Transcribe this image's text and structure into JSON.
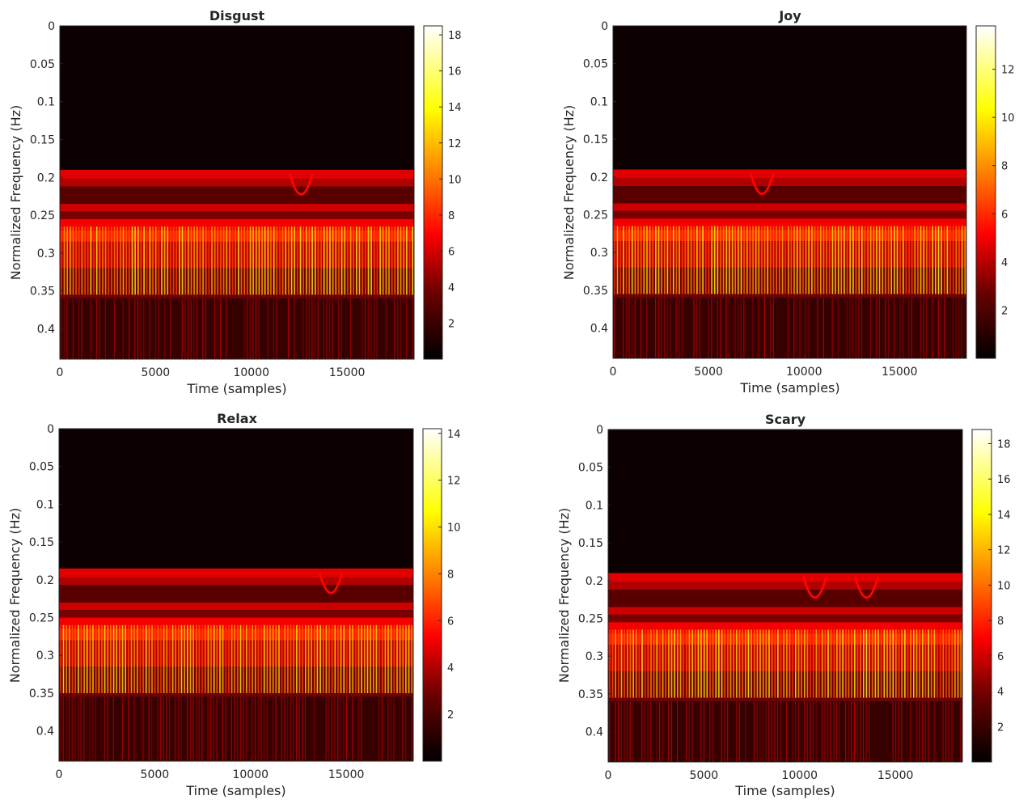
{
  "chart_data": [
    {
      "type": "heatmap",
      "title": "Disgust",
      "xlabel": "Time (samples)",
      "ylabel": "Normalized Frequency (Hz)",
      "xlim": [
        0,
        18500
      ],
      "ylim": [
        0,
        0.44
      ],
      "y_reversed": true,
      "xticks": [
        0,
        5000,
        10000,
        15000
      ],
      "yticks": [
        0,
        0.05,
        0.1,
        0.15,
        0.2,
        0.25,
        0.3,
        0.35,
        0.4
      ],
      "colorbar": {
        "min": 0,
        "max": 18.5,
        "ticks": [
          2,
          4,
          6,
          8,
          10,
          12,
          14,
          16,
          18
        ]
      },
      "colormap": "hot",
      "band_low": 0.19,
      "dips": [
        12600
      ]
    },
    {
      "type": "heatmap",
      "title": "Joy",
      "xlabel": "Time (samples)",
      "ylabel": "Normalized Frequency (Hz)",
      "xlim": [
        0,
        18500
      ],
      "ylim": [
        0,
        0.44
      ],
      "y_reversed": true,
      "xticks": [
        0,
        5000,
        10000,
        15000
      ],
      "yticks": [
        0,
        0.05,
        0.1,
        0.15,
        0.2,
        0.25,
        0.3,
        0.35,
        0.4
      ],
      "colorbar": {
        "min": 0,
        "max": 13.8,
        "ticks": [
          2,
          4,
          6,
          8,
          10,
          12
        ]
      },
      "colormap": "hot",
      "band_low": 0.19,
      "dips": [
        7800
      ]
    },
    {
      "type": "heatmap",
      "title": "Relax",
      "xlabel": "Time (samples)",
      "ylabel": "Normalized Frequency (Hz)",
      "xlim": [
        0,
        18500
      ],
      "ylim": [
        0,
        0.44
      ],
      "y_reversed": true,
      "xticks": [
        0,
        5000,
        10000,
        15000
      ],
      "yticks": [
        0,
        0.05,
        0.1,
        0.15,
        0.2,
        0.25,
        0.3,
        0.35,
        0.4
      ],
      "colorbar": {
        "min": 0,
        "max": 14.2,
        "ticks": [
          2,
          4,
          6,
          8,
          10,
          12,
          14
        ]
      },
      "colormap": "hot",
      "band_low": 0.185,
      "dips": [
        14200
      ]
    },
    {
      "type": "heatmap",
      "title": "Scary",
      "xlabel": "Time (samples)",
      "ylabel": "Normalized Frequency (Hz)",
      "xlim": [
        0,
        18500
      ],
      "ylim": [
        0,
        0.44
      ],
      "y_reversed": true,
      "xticks": [
        0,
        5000,
        10000,
        15000
      ],
      "yticks": [
        0,
        0.05,
        0.1,
        0.15,
        0.2,
        0.25,
        0.3,
        0.35,
        0.4
      ],
      "colorbar": {
        "min": 0,
        "max": 18.8,
        "ticks": [
          2,
          4,
          6,
          8,
          10,
          12,
          14,
          16,
          18
        ]
      },
      "colormap": "hot",
      "band_low": 0.19,
      "dips": [
        10800,
        13500
      ]
    }
  ]
}
